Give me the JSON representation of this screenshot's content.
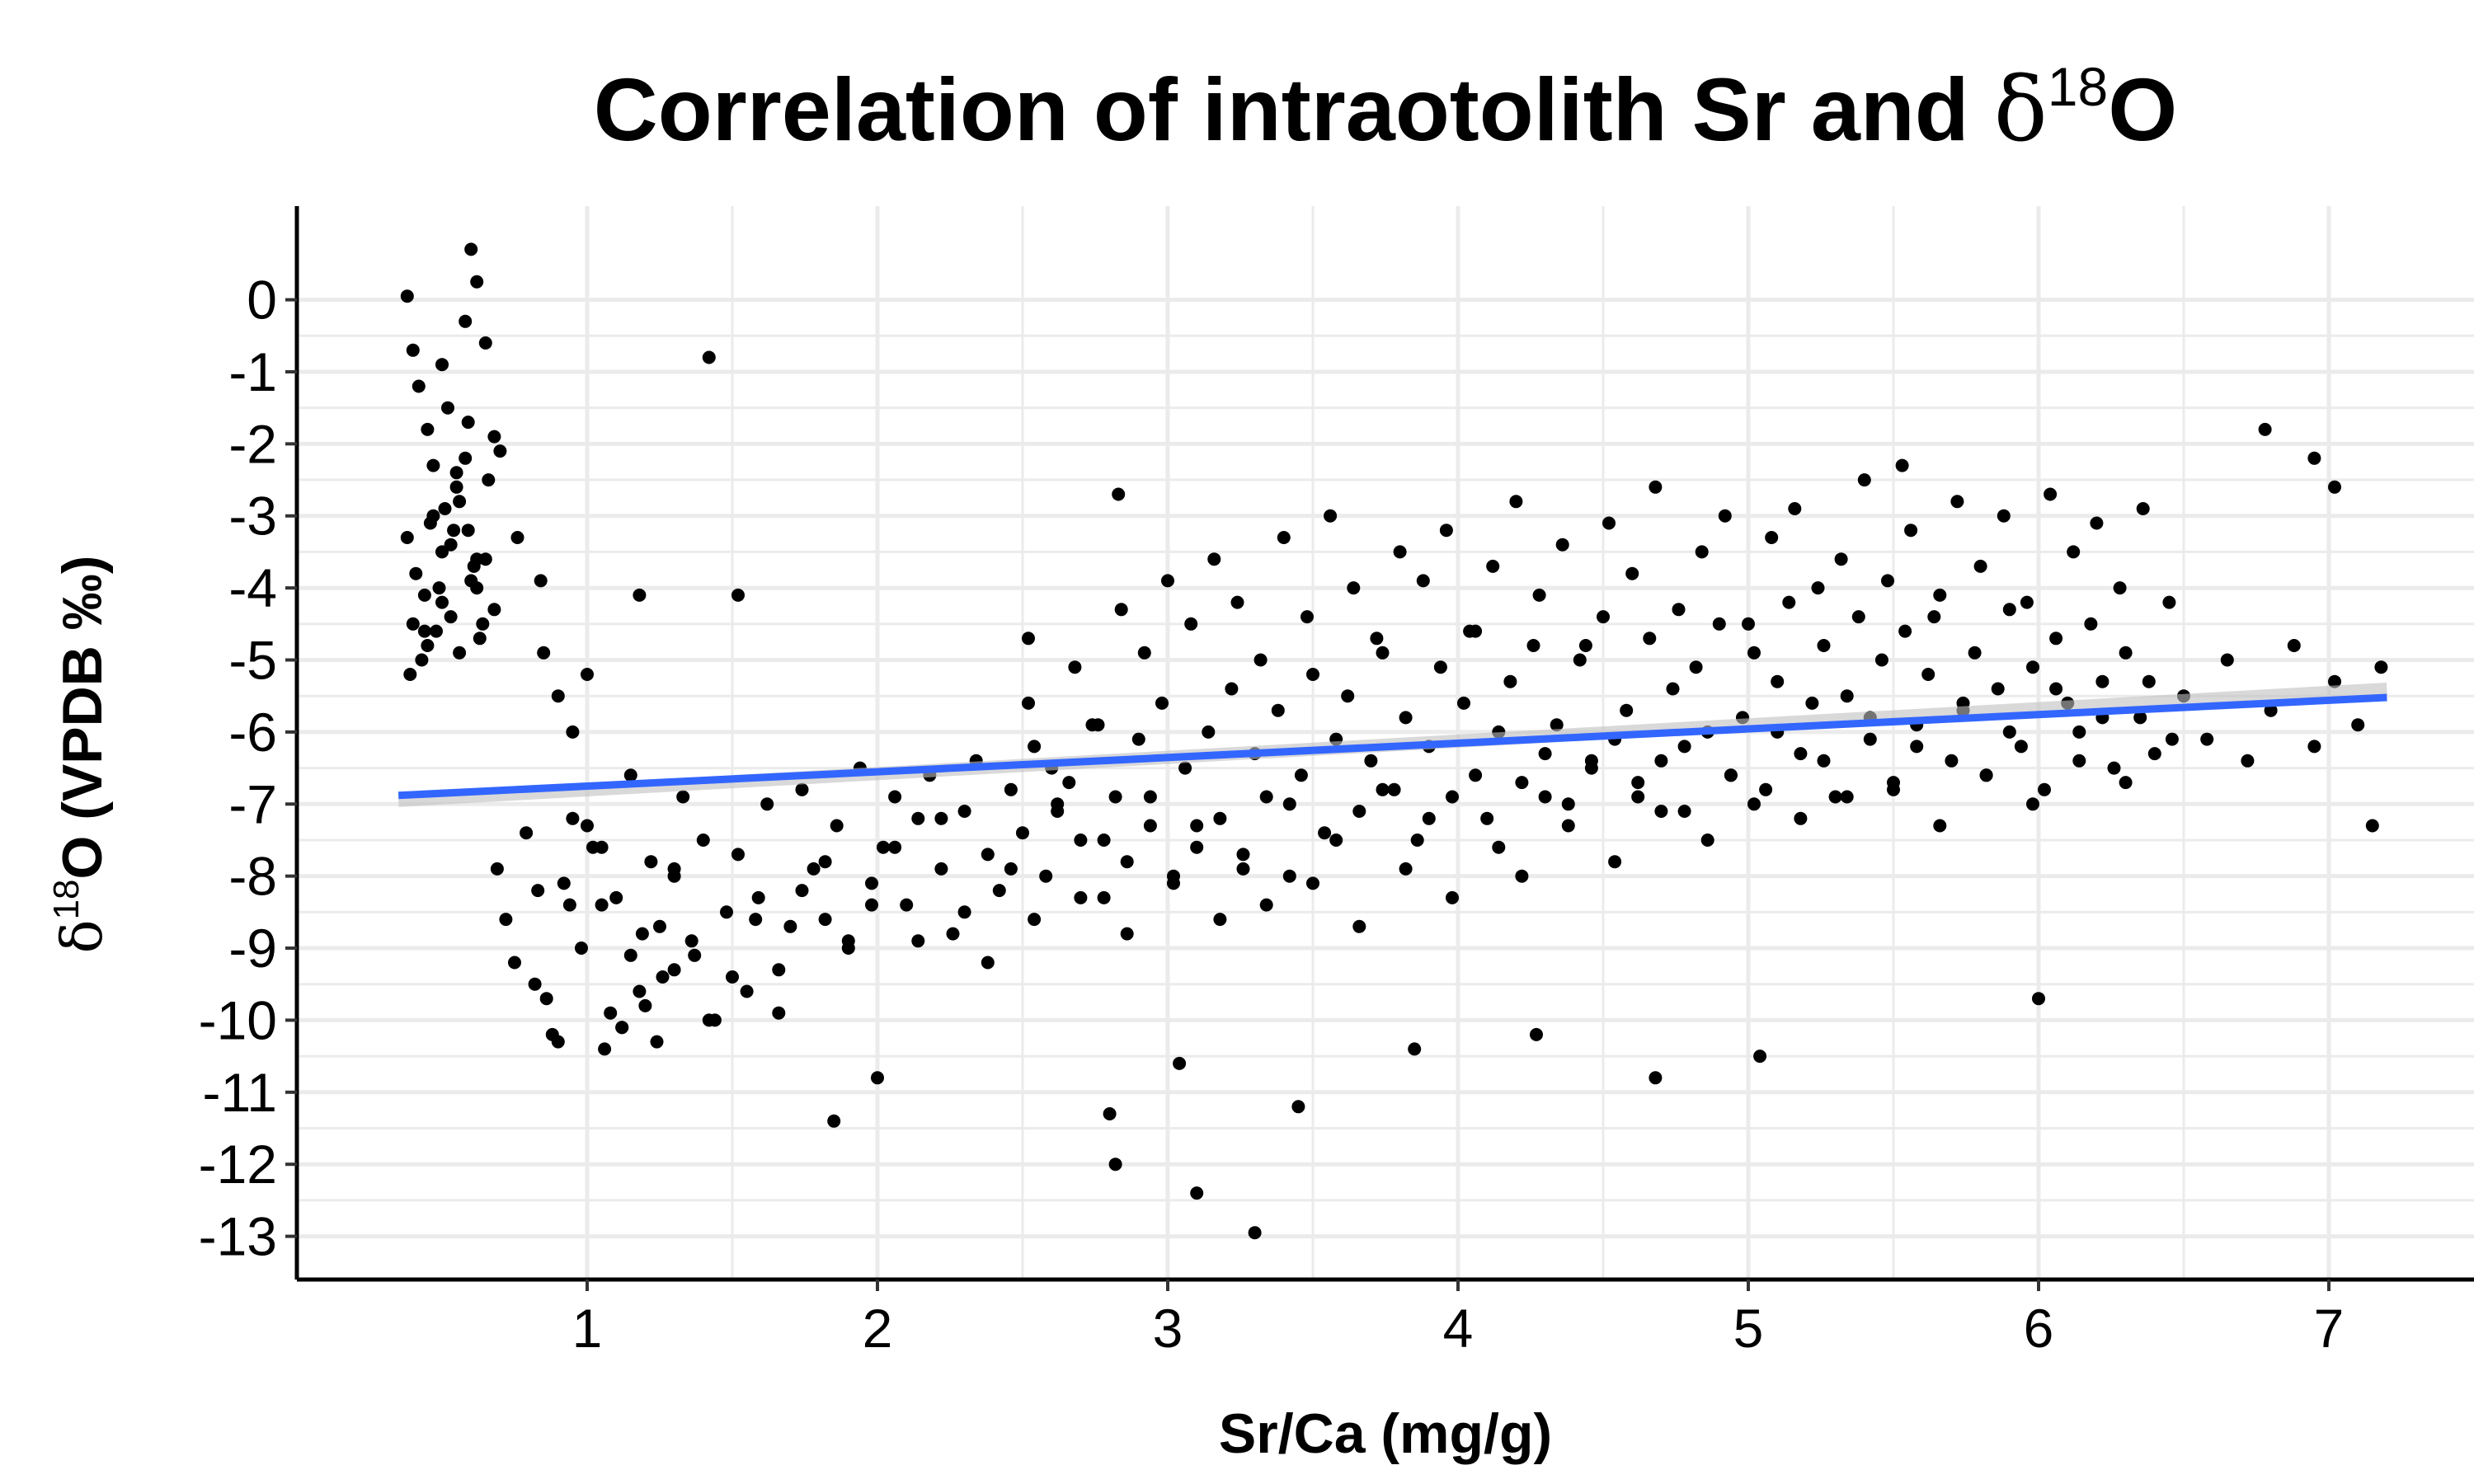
{
  "chart_data": {
    "type": "scatter",
    "title": {
      "main": "Correlation of intraotolith Sr and ",
      "delta": "δ",
      "sup": "18",
      "end": "O"
    },
    "xlabel": "Sr/Ca (mg/g)",
    "ylabel": {
      "delta": "δ",
      "sup": "18",
      "rest": "O (VPDB ‰)"
    },
    "xlim": [
      0.0,
      7.5
    ],
    "ylim": [
      -13.6,
      1.3
    ],
    "x_ticks": [
      1,
      2,
      3,
      4,
      5,
      6,
      7
    ],
    "x_tick_labels": [
      "1",
      "2",
      "3",
      "4",
      "5",
      "6",
      "7"
    ],
    "y_ticks": [
      0,
      -1,
      -2,
      -3,
      -4,
      -5,
      -6,
      -7,
      -8,
      -9,
      -10,
      -11,
      -12,
      -13
    ],
    "y_tick_labels": [
      "0",
      "-1",
      "-2",
      "-3",
      "-4",
      "-5",
      "-6",
      "-7",
      "-8",
      "-9",
      "-10",
      "-11",
      "-12",
      "-13"
    ],
    "grid": true,
    "point_color": "#000000",
    "trend_line": {
      "x": [
        0.35,
        7.2
      ],
      "y": [
        -6.88,
        -5.52
      ],
      "color": "#3366FF"
    },
    "points_x": [
      0.38,
      0.4,
      0.42,
      0.45,
      0.47,
      0.5,
      0.52,
      0.55,
      0.58,
      0.6,
      0.62,
      0.65,
      0.68,
      0.7,
      0.38,
      0.41,
      0.44,
      0.47,
      0.5,
      0.53,
      0.56,
      0.59,
      0.62,
      0.65,
      0.68,
      0.4,
      0.45,
      0.5,
      0.55,
      0.6,
      0.43,
      0.48,
      0.53,
      0.58,
      0.63,
      0.46,
      0.51,
      0.56,
      0.61,
      0.66,
      0.39,
      0.44,
      0.49,
      0.54,
      0.59,
      0.64,
      0.69,
      0.72,
      0.75,
      0.79,
      0.83,
      0.86,
      0.9,
      0.92,
      0.95,
      0.98,
      1.02,
      1.05,
      1.08,
      1.12,
      1.15,
      1.19,
      1.22,
      1.26,
      1.3,
      1.33,
      1.37,
      1.4,
      1.44,
      1.48,
      1.52,
      1.55,
      1.59,
      1.62,
      1.66,
      1.7,
      1.74,
      1.78,
      1.82,
      1.86,
      1.9,
      1.94,
      1.98,
      2.02,
      2.06,
      2.1,
      2.14,
      2.18,
      2.22,
      2.26,
      2.3,
      2.34,
      2.38,
      2.42,
      2.46,
      2.5,
      2.54,
      2.58,
      2.62,
      2.66,
      2.7,
      2.74,
      2.78,
      2.82,
      2.86,
      2.9,
      2.94,
      2.98,
      3.02,
      3.06,
      3.1,
      3.14,
      3.18,
      3.22,
      3.26,
      3.3,
      3.34,
      3.38,
      3.42,
      3.46,
      3.5,
      3.54,
      3.58,
      3.62,
      3.66,
      3.7,
      3.74,
      3.78,
      3.82,
      3.86,
      3.9,
      3.94,
      3.98,
      4.02,
      4.06,
      4.1,
      4.14,
      4.18,
      4.22,
      4.26,
      4.3,
      4.34,
      4.38,
      4.42,
      4.46,
      4.5,
      4.54,
      4.58,
      4.62,
      4.66,
      4.7,
      4.74,
      4.78,
      4.82,
      4.86,
      4.9,
      4.94,
      4.98,
      5.02,
      5.06,
      5.1,
      5.14,
      5.18,
      5.22,
      5.26,
      5.3,
      5.34,
      5.38,
      5.42,
      5.46,
      5.5,
      5.54,
      5.58,
      5.62,
      5.66,
      5.7,
      5.74,
      5.78,
      5.82,
      5.86,
      5.9,
      5.94,
      5.98,
      6.02,
      6.06,
      6.1,
      6.14,
      6.18,
      6.22,
      6.26,
      6.3,
      6.35,
      6.4,
      6.45,
      6.5,
      6.58,
      6.65,
      6.72,
      6.8,
      6.88,
      6.95,
      7.02,
      7.1,
      7.18,
      0.85,
      0.9,
      0.95,
      1.0,
      1.05,
      1.1,
      1.15,
      1.2,
      1.25,
      1.3,
      0.82,
      0.88,
      0.94,
      1.0,
      1.06,
      1.12,
      1.18,
      1.24,
      1.3,
      1.36,
      1.42,
      1.5,
      1.58,
      1.66,
      1.74,
      1.82,
      1.9,
      1.98,
      2.06,
      2.14,
      2.22,
      2.3,
      2.38,
      2.46,
      2.54,
      2.62,
      2.7,
      2.78,
      2.86,
      2.94,
      3.02,
      3.1,
      3.18,
      3.26,
      3.34,
      3.42,
      3.5,
      3.58,
      3.66,
      3.74,
      3.82,
      3.9,
      3.98,
      4.06,
      4.14,
      4.22,
      4.3,
      4.38,
      4.46,
      4.54,
      4.62,
      4.7,
      4.78,
      4.86,
      4.94,
      5.02,
      5.1,
      5.18,
      5.26,
      5.34,
      5.42,
      5.5,
      5.58,
      5.66,
      5.74,
      5.82,
      5.9,
      5.98,
      6.06,
      6.14,
      6.22,
      6.3,
      6.38,
      6.46,
      2.52,
      2.6,
      2.68,
      2.76,
      2.84,
      2.92,
      3.0,
      3.08,
      3.16,
      3.24,
      3.32,
      3.4,
      3.48,
      3.56,
      3.64,
      3.72,
      3.8,
      3.88,
      3.96,
      4.04,
      4.12,
      4.2,
      4.28,
      4.36,
      4.44,
      4.52,
      4.6,
      4.68,
      4.76,
      4.84,
      4.92,
      5.0,
      5.08,
      5.16,
      5.24,
      5.32,
      5.4,
      5.48,
      5.56,
      5.64,
      5.72,
      5.8,
      5.88,
      5.96,
      6.04,
      6.12,
      6.2,
      6.28,
      6.36,
      0.62,
      0.76,
      0.84,
      1.18,
      1.42,
      1.52,
      1.85,
      2.0,
      2.52,
      2.8,
      2.82,
      2.83,
      3.04,
      3.1,
      3.3,
      3.45,
      3.85,
      4.27,
      4.68,
      5.04,
      5.53,
      6.0,
      6.78,
      6.95,
      7.02,
      7.15
    ],
    "points_y": [
      0.05,
      -0.7,
      -1.2,
      -1.8,
      -2.3,
      -0.9,
      -1.5,
      -2.4,
      -0.3,
      0.7,
      0.25,
      -0.6,
      -1.9,
      -2.1,
      -3.3,
      -3.8,
      -4.1,
      -3.0,
      -3.5,
      -4.4,
      -2.8,
      -3.2,
      -4.0,
      -3.6,
      -4.3,
      -4.5,
      -4.8,
      -4.2,
      -2.6,
      -3.9,
      -5.0,
      -4.6,
      -3.4,
      -2.2,
      -4.7,
      -3.1,
      -2.9,
      -4.9,
      -3.7,
      -2.5,
      -5.2,
      -4.6,
      -4.0,
      -3.2,
      -1.7,
      -4.5,
      -7.9,
      -8.6,
      -9.2,
      -7.4,
      -8.2,
      -9.7,
      -10.3,
      -8.1,
      -7.2,
      -9.0,
      -7.6,
      -8.4,
      -9.9,
      -10.1,
      -6.6,
      -8.8,
      -7.8,
      -9.4,
      -8.0,
      -6.9,
      -9.1,
      -7.5,
      -10.0,
      -8.5,
      -7.7,
      -9.6,
      -8.3,
      -7.0,
      -9.3,
      -8.7,
      -6.8,
      -7.9,
      -8.6,
      -7.3,
      -8.9,
      -6.5,
      -8.1,
      -7.6,
      -6.9,
      -8.4,
      -7.2,
      -6.6,
      -7.9,
      -8.8,
      -7.1,
      -6.4,
      -7.7,
      -8.2,
      -6.8,
      -7.4,
      -6.2,
      -8.0,
      -7.0,
      -6.7,
      -7.5,
      -5.9,
      -8.3,
      -6.9,
      -7.8,
      -6.1,
      -7.3,
      -5.6,
      -8.1,
      -6.5,
      -7.6,
      -6.0,
      -7.2,
      -5.4,
      -7.9,
      -6.3,
      -6.9,
      -5.7,
      -8.0,
      -6.6,
      -5.2,
      -7.4,
      -6.1,
      -5.5,
      -7.1,
      -6.4,
      -4.9,
      -6.8,
      -5.8,
      -7.5,
      -6.2,
      -5.1,
      -6.9,
      -5.6,
      -4.6,
      -7.2,
      -6.0,
      -5.3,
      -6.7,
      -4.8,
      -6.3,
      -5.9,
      -7.0,
      -5.0,
      -6.5,
      -4.4,
      -6.1,
      -5.7,
      -6.9,
      -4.7,
      -6.4,
      -5.4,
      -7.1,
      -5.1,
      -6.0,
      -4.5,
      -6.6,
      -5.8,
      -4.9,
      -6.8,
      -5.3,
      -4.2,
      -6.3,
      -5.6,
      -4.8,
      -6.9,
      -5.5,
      -4.4,
      -6.1,
      -5.0,
      -6.7,
      -4.6,
      -5.9,
      -5.2,
      -4.1,
      -6.4,
      -5.7,
      -4.9,
      -6.6,
      -5.4,
      -4.3,
      -6.2,
      -5.1,
      -6.8,
      -4.7,
      -5.6,
      -6.0,
      -4.5,
      -5.3,
      -6.5,
      -4.9,
      -5.8,
      -6.3,
      -4.2,
      -5.5,
      -6.1,
      -5.0,
      -6.4,
      -5.7,
      -4.8,
      -6.2,
      -5.3,
      -5.9,
      -5.1,
      -4.9,
      -5.5,
      -6.0,
      -5.2,
      -7.6,
      -8.3,
      -9.1,
      -9.8,
      -8.7,
      -7.9,
      -9.5,
      -10.2,
      -8.4,
      -7.3,
      -10.4,
      -10.1,
      -9.6,
      -10.3,
      -9.3,
      -8.9,
      -10.0,
      -9.4,
      -8.6,
      -9.9,
      -8.2,
      -7.8,
      -9.0,
      -8.4,
      -7.6,
      -8.9,
      -7.2,
      -8.5,
      -9.2,
      -7.9,
      -8.6,
      -7.1,
      -8.3,
      -7.5,
      -8.8,
      -6.9,
      -8.0,
      -7.3,
      -8.6,
      -7.7,
      -8.4,
      -7.0,
      -8.1,
      -7.5,
      -8.7,
      -6.8,
      -7.9,
      -7.2,
      -8.3,
      -6.6,
      -7.6,
      -8.0,
      -6.9,
      -7.3,
      -6.4,
      -7.8,
      -6.7,
      -7.1,
      -6.2,
      -7.5,
      -6.6,
      -7.0,
      -6.0,
      -7.2,
      -6.4,
      -6.9,
      -5.8,
      -6.8,
      -6.2,
      -7.3,
      -5.6,
      -6.6,
      -6.0,
      -7.0,
      -5.4,
      -6.4,
      -5.8,
      -6.7,
      -5.3,
      -6.1,
      -5.6,
      -6.5,
      -5.1,
      -5.9,
      -4.3,
      -4.9,
      -3.9,
      -4.5,
      -3.6,
      -4.2,
      -5.0,
      -3.3,
      -4.4,
      -3.0,
      -4.0,
      -4.7,
      -3.5,
      -3.9,
      -3.2,
      -4.6,
      -3.7,
      -2.8,
      -4.1,
      -3.4,
      -4.8,
      -3.1,
      -3.8,
      -2.6,
      -4.3,
      -3.5,
      -3.0,
      -4.5,
      -3.3,
      -2.9,
      -4.0,
      -3.6,
      -2.5,
      -3.9,
      -3.2,
      -4.4,
      -2.8,
      -3.7,
      -3.0,
      -4.2,
      -2.7,
      -3.5,
      -3.1,
      -4.0,
      -2.9,
      -3.6,
      -3.3,
      -3.9,
      -4.1,
      -0.8,
      -4.1,
      -11.4,
      -10.8,
      -4.7,
      -11.3,
      -12.0,
      -2.7,
      -10.6,
      -12.4,
      -12.95,
      -11.2,
      -10.4,
      -10.2,
      -10.8,
      -10.5,
      -2.3,
      -9.7,
      -1.8,
      -2.2,
      -2.6,
      -7.3,
      -5.7,
      -7.0,
      -6.8
    ]
  }
}
